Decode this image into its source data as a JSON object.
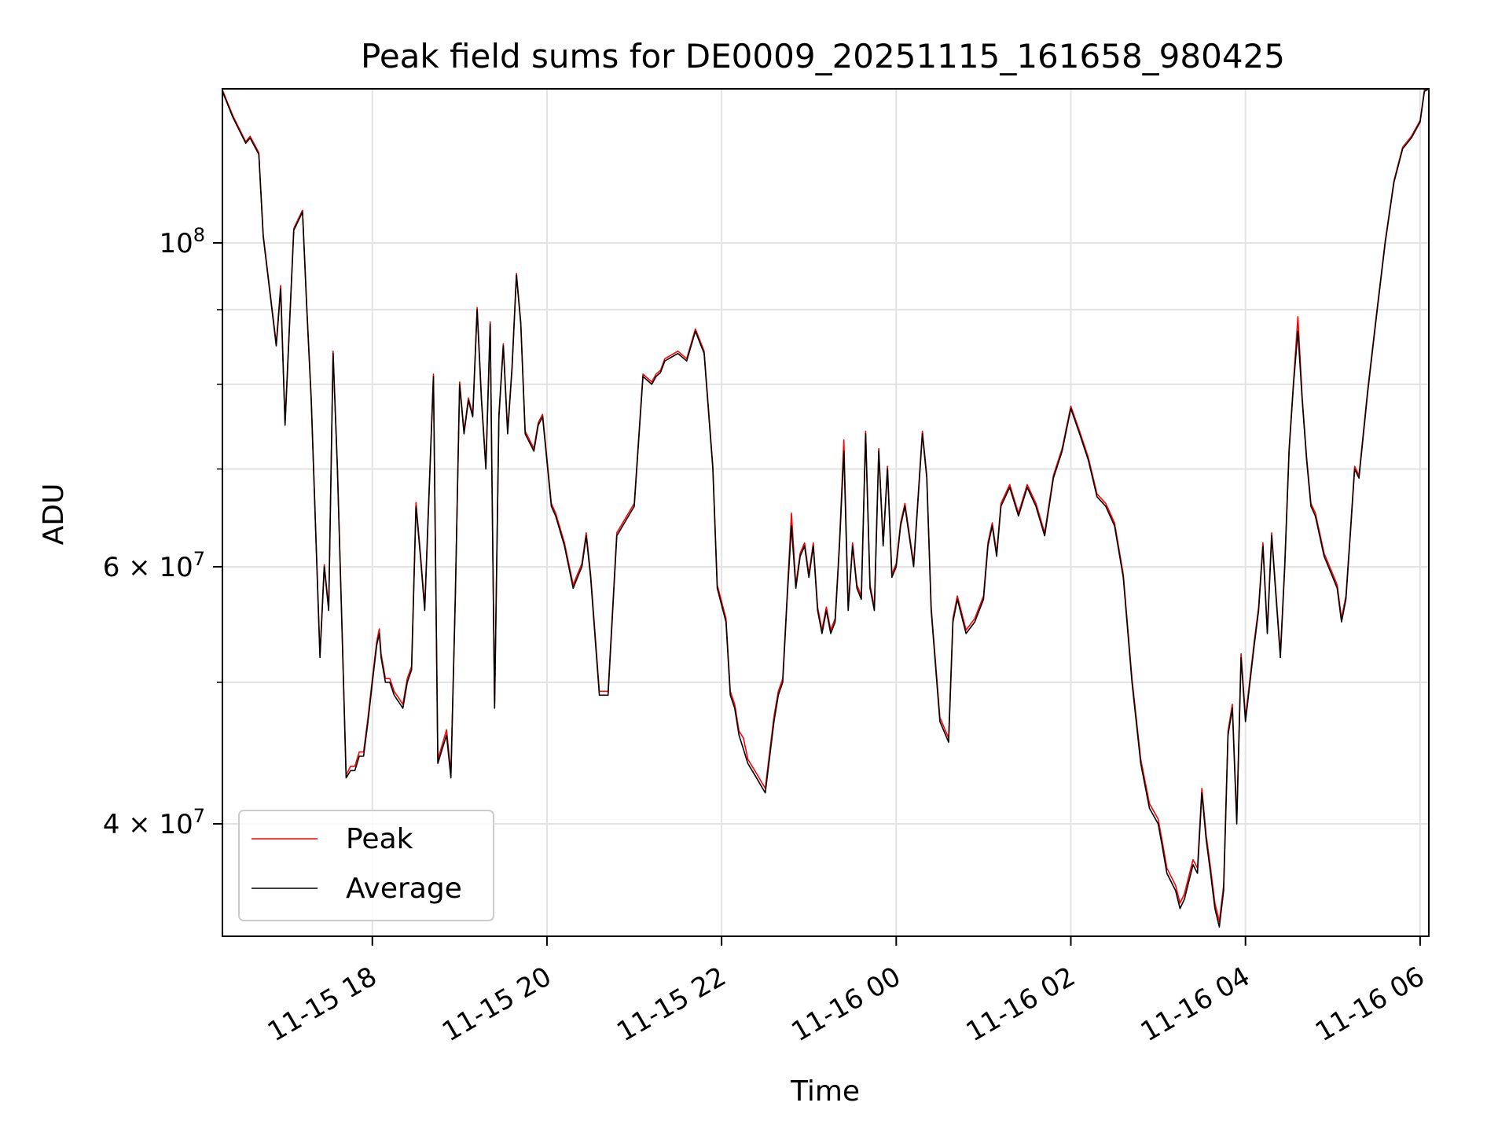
{
  "chart_data": {
    "type": "line",
    "title": "Peak field sums for DE0009_20251115_161658_980425",
    "xlabel": "Time",
    "ylabel": "ADU",
    "yscale": "log",
    "ylim": [
      33500000,
      127500000
    ],
    "xlim": [
      16.283,
      30.1
    ],
    "grid": true,
    "legend_position": "lower-left",
    "x_ticks": [
      {
        "value": 18,
        "label": "11-15 18"
      },
      {
        "value": 20,
        "label": "11-15 20"
      },
      {
        "value": 22,
        "label": "11-15 22"
      },
      {
        "value": 24,
        "label": "11-16 00"
      },
      {
        "value": 26,
        "label": "11-16 02"
      },
      {
        "value": 28,
        "label": "11-16 04"
      },
      {
        "value": 30,
        "label": "11-16 06"
      }
    ],
    "y_ticks_major": [
      {
        "value": 100000000,
        "label": "10",
        "exp": "8",
        "style": "power"
      }
    ],
    "y_ticks_minor": [
      {
        "value": 40000000,
        "label": "4 × 10",
        "exp": "7"
      },
      {
        "value": 60000000,
        "label": "6 × 10",
        "exp": "7"
      }
    ],
    "y_minor_grid": [
      40000000,
      50000000,
      60000000,
      70000000,
      80000000,
      90000000
    ],
    "series": [
      {
        "name": "Peak",
        "color": "#ff0000"
      },
      {
        "name": "Average",
        "color": "#000000"
      }
    ],
    "x": [
      16.283,
      16.4,
      16.55,
      16.6,
      16.7,
      16.75,
      16.9,
      16.95,
      17.0,
      17.1,
      17.2,
      17.25,
      17.3,
      17.4,
      17.45,
      17.5,
      17.55,
      17.6,
      17.65,
      17.7,
      17.75,
      17.8,
      17.85,
      17.9,
      17.95,
      18.0,
      18.05,
      18.08,
      18.1,
      18.15,
      18.2,
      18.25,
      18.3,
      18.35,
      18.4,
      18.45,
      18.5,
      18.55,
      18.6,
      18.7,
      18.75,
      18.8,
      18.85,
      18.9,
      18.95,
      19.0,
      19.05,
      19.1,
      19.15,
      19.2,
      19.25,
      19.3,
      19.35,
      19.4,
      19.45,
      19.5,
      19.55,
      19.6,
      19.65,
      19.7,
      19.75,
      19.8,
      19.85,
      19.9,
      19.95,
      20.05,
      20.1,
      20.2,
      20.3,
      20.35,
      20.4,
      20.45,
      20.5,
      20.6,
      20.7,
      20.8,
      21.0,
      21.1,
      21.2,
      21.25,
      21.3,
      21.35,
      21.5,
      21.6,
      21.7,
      21.8,
      21.9,
      21.95,
      22.05,
      22.1,
      22.15,
      22.2,
      22.25,
      22.3,
      22.35,
      22.4,
      22.45,
      22.5,
      22.6,
      22.65,
      22.7,
      22.75,
      22.8,
      22.85,
      22.9,
      22.95,
      23.0,
      23.05,
      23.1,
      23.15,
      23.2,
      23.25,
      23.3,
      23.35,
      23.4,
      23.45,
      23.5,
      23.55,
      23.6,
      23.65,
      23.7,
      23.75,
      23.8,
      23.85,
      23.9,
      23.95,
      24.0,
      24.05,
      24.1,
      24.2,
      24.3,
      24.35,
      24.4,
      24.5,
      24.6,
      24.65,
      24.7,
      24.8,
      24.9,
      25.0,
      25.05,
      25.1,
      25.15,
      25.2,
      25.3,
      25.4,
      25.5,
      25.6,
      25.7,
      25.8,
      25.9,
      26.0,
      26.1,
      26.2,
      26.3,
      26.4,
      26.5,
      26.6,
      26.7,
      26.8,
      26.9,
      27.0,
      27.05,
      27.1,
      27.2,
      27.25,
      27.3,
      27.35,
      27.4,
      27.45,
      27.5,
      27.55,
      27.6,
      27.65,
      27.7,
      27.75,
      27.8,
      27.85,
      27.9,
      27.95,
      28.0,
      28.1,
      28.15,
      28.2,
      28.25,
      28.3,
      28.4,
      28.45,
      28.5,
      28.55,
      28.6,
      28.65,
      28.7,
      28.75,
      28.8,
      28.85,
      28.9,
      29.0,
      29.05,
      29.1,
      29.15,
      29.2,
      29.25,
      29.3,
      29.4,
      29.5,
      29.6,
      29.7,
      29.8,
      29.9,
      30.0,
      30.05,
      30.1
    ],
    "average": [
      127000000,
      122000000,
      117000000,
      118000000,
      115000000,
      101000000,
      85000000,
      93000000,
      75000000,
      102000000,
      105000000,
      90000000,
      78000000,
      52000000,
      60000000,
      56000000,
      84000000,
      70000000,
      55000000,
      43000000,
      43500000,
      43500000,
      44500000,
      44500000,
      47000000,
      50000000,
      53000000,
      54000000,
      52000000,
      50000000,
      50000000,
      49000000,
      48500000,
      48000000,
      50000000,
      51000000,
      66000000,
      61000000,
      56000000,
      81000000,
      44000000,
      45000000,
      46000000,
      43000000,
      57000000,
      80000000,
      74000000,
      78000000,
      76000000,
      90000000,
      78000000,
      70000000,
      88000000,
      48000000,
      76000000,
      85000000,
      74000000,
      82000000,
      95000000,
      88000000,
      74000000,
      73000000,
      72000000,
      75000000,
      76000000,
      66000000,
      65000000,
      62000000,
      58000000,
      59000000,
      60000000,
      63000000,
      59000000,
      49000000,
      49000000,
      63000000,
      66000000,
      81000000,
      80000000,
      81000000,
      81500000,
      83000000,
      84000000,
      83000000,
      87000000,
      84000000,
      70000000,
      58000000,
      55000000,
      49000000,
      48000000,
      46000000,
      45000000,
      44000000,
      43500000,
      43000000,
      42500000,
      42000000,
      47000000,
      49000000,
      50000000,
      57000000,
      64000000,
      58000000,
      61000000,
      62000000,
      59000000,
      62000000,
      56000000,
      54000000,
      56000000,
      54000000,
      55000000,
      62000000,
      72000000,
      56000000,
      62000000,
      58000000,
      57000000,
      74000000,
      58000000,
      56000000,
      72000000,
      62000000,
      70000000,
      59000000,
      60000000,
      64000000,
      66000000,
      60000000,
      74000000,
      69000000,
      56000000,
      47000000,
      45500000,
      55000000,
      57000000,
      54000000,
      55000000,
      57000000,
      62000000,
      64000000,
      61000000,
      66000000,
      68000000,
      65000000,
      68000000,
      66000000,
      63000000,
      69000000,
      72000000,
      77000000,
      74000000,
      71000000,
      67000000,
      66000000,
      64000000,
      59000000,
      50000000,
      44000000,
      41000000,
      40000000,
      38500000,
      37000000,
      36000000,
      35000000,
      35500000,
      36500000,
      37500000,
      37000000,
      42000000,
      39000000,
      37000000,
      35000000,
      34000000,
      36000000,
      46000000,
      48000000,
      40000000,
      52000000,
      47000000,
      53000000,
      56000000,
      62000000,
      54000000,
      63000000,
      52000000,
      60000000,
      72000000,
      80000000,
      87000000,
      78000000,
      71000000,
      66000000,
      65000000,
      63000000,
      61000000,
      59000000,
      58000000,
      55000000,
      57000000,
      63000000,
      70000000,
      69000000,
      79000000,
      89000000,
      100000000,
      110000000,
      116000000,
      118000000,
      121000000,
      127000000,
      127500000
    ],
    "peak": [
      127300000,
      122300000,
      117300000,
      118300000,
      115300000,
      101300000,
      85300000,
      93500000,
      75300000,
      102300000,
      105300000,
      90300000,
      78300000,
      52200000,
      60200000,
      56200000,
      84300000,
      70300000,
      55200000,
      43200000,
      43800000,
      43800000,
      44800000,
      44800000,
      47300000,
      50300000,
      53300000,
      54400000,
      52300000,
      50300000,
      50300000,
      49300000,
      48800000,
      48300000,
      50300000,
      51300000,
      66400000,
      61300000,
      56300000,
      81300000,
      44300000,
      45300000,
      46400000,
      43300000,
      57300000,
      80300000,
      74300000,
      78300000,
      76300000,
      90300000,
      78300000,
      70300000,
      88300000,
      48300000,
      76300000,
      85300000,
      74300000,
      82300000,
      95300000,
      88300000,
      74300000,
      73300000,
      72300000,
      75300000,
      76300000,
      66300000,
      65300000,
      62300000,
      58300000,
      59300000,
      60300000,
      63300000,
      59300000,
      49300000,
      49300000,
      63300000,
      66300000,
      81300000,
      80300000,
      81300000,
      81800000,
      83300000,
      84300000,
      83300000,
      87300000,
      84300000,
      70300000,
      58300000,
      55300000,
      49300000,
      48300000,
      46300000,
      45800000,
      44300000,
      43800000,
      43300000,
      42800000,
      42300000,
      47400000,
      49300000,
      50300000,
      57300000,
      65300000,
      58300000,
      61300000,
      62300000,
      59300000,
      62300000,
      56300000,
      54300000,
      56300000,
      54300000,
      55300000,
      62300000,
      73300000,
      56300000,
      62300000,
      58300000,
      57300000,
      74300000,
      58300000,
      56300000,
      72300000,
      62300000,
      70300000,
      59300000,
      60300000,
      64300000,
      66300000,
      60300000,
      74300000,
      69300000,
      56300000,
      47300000,
      45800000,
      55300000,
      57300000,
      54300000,
      55300000,
      57300000,
      62300000,
      64300000,
      61300000,
      66300000,
      68300000,
      65300000,
      68300000,
      66300000,
      63300000,
      69300000,
      72300000,
      77300000,
      74300000,
      71300000,
      67300000,
      66300000,
      64300000,
      59300000,
      50300000,
      44300000,
      41300000,
      40300000,
      38800000,
      37300000,
      36300000,
      35300000,
      35800000,
      36800000,
      37800000,
      37300000,
      42300000,
      39300000,
      37300000,
      35300000,
      34300000,
      36300000,
      46300000,
      48300000,
      40300000,
      52300000,
      47300000,
      53300000,
      56300000,
      62300000,
      54300000,
      63300000,
      52300000,
      60300000,
      72300000,
      80300000,
      89000000,
      78300000,
      71300000,
      66300000,
      65300000,
      63300000,
      61300000,
      59300000,
      58300000,
      55300000,
      57300000,
      63300000,
      70300000,
      69300000,
      79300000,
      89300000,
      100300000,
      110300000,
      116300000,
      118300000,
      121300000,
      127300000,
      127500000
    ]
  }
}
